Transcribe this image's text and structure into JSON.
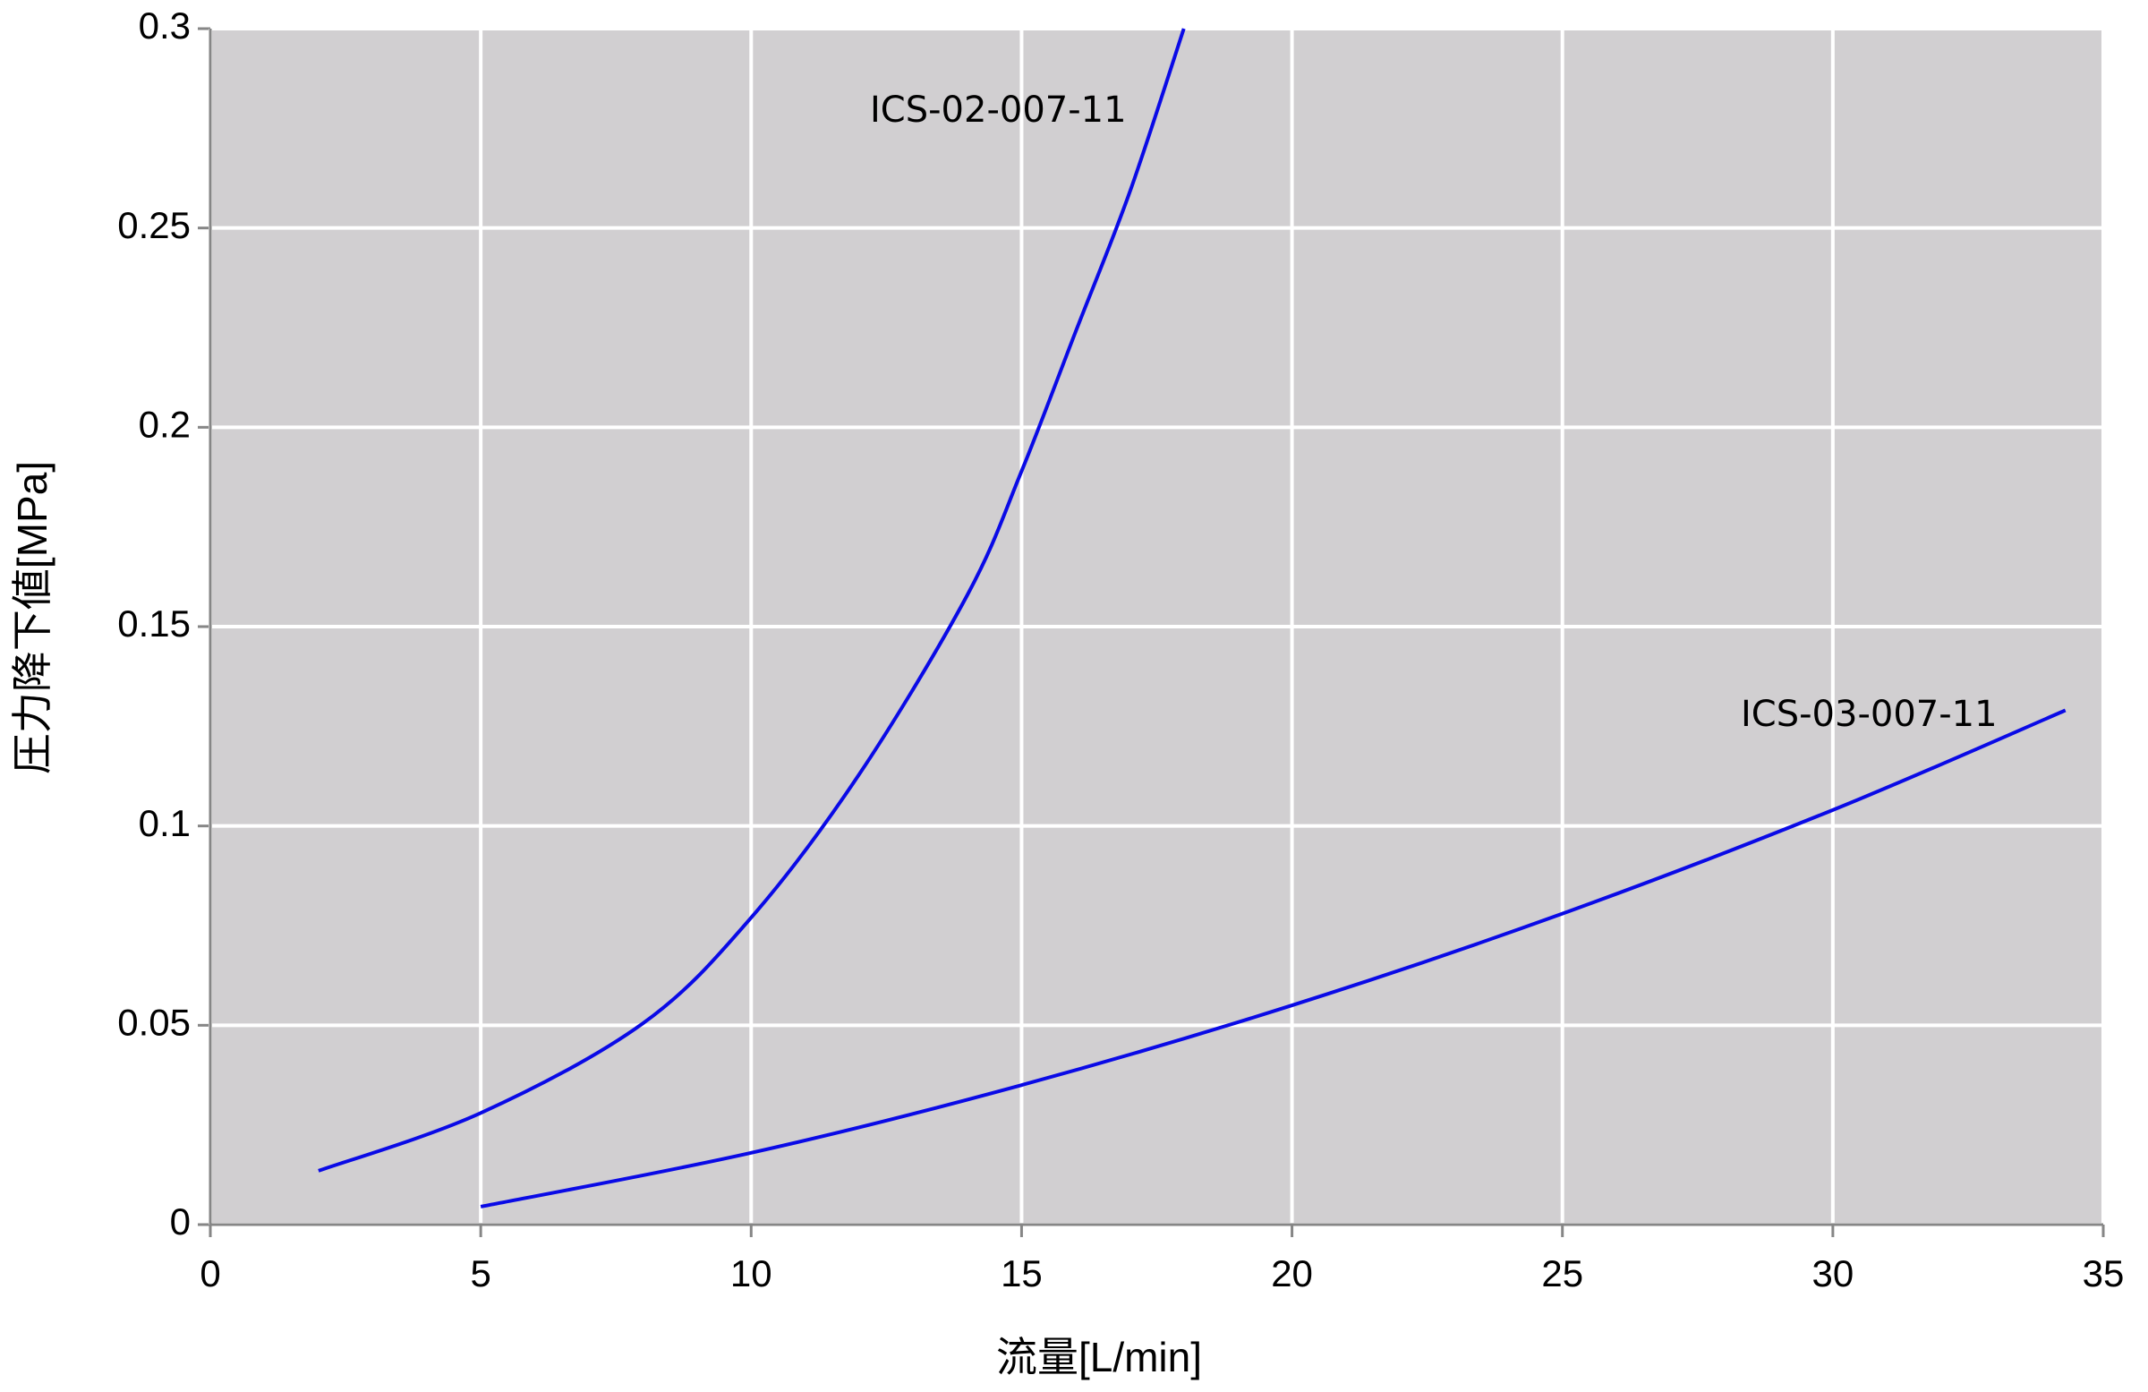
{
  "chart_data": {
    "type": "line",
    "xlabel": "流量[L/min]",
    "ylabel": "圧力降下値[MPa]",
    "xlim": [
      0,
      35
    ],
    "xticks": [
      0,
      5,
      10,
      15,
      20,
      25,
      30,
      35
    ],
    "ylim": [
      0,
      0.3
    ],
    "yticks": [
      0,
      0.05,
      0.1,
      0.15,
      0.2,
      0.25,
      0.3
    ],
    "grid": true,
    "series": [
      {
        "name": "ICS-02-007-11",
        "color": "#0a0ae6",
        "x": [
          2,
          5,
          8,
          10,
          12,
          14,
          15,
          16,
          17,
          18
        ],
        "values": [
          0.0135,
          0.028,
          0.0505,
          0.077,
          0.113,
          0.158,
          0.189,
          0.224,
          0.259,
          0.3
        ]
      },
      {
        "name": "ICS-03-007-11",
        "color": "#0a0ae6",
        "x": [
          5,
          10,
          15,
          20,
          25,
          30,
          34.3
        ],
        "values": [
          0.0045,
          0.018,
          0.035,
          0.055,
          0.078,
          0.104,
          0.129
        ]
      }
    ]
  }
}
